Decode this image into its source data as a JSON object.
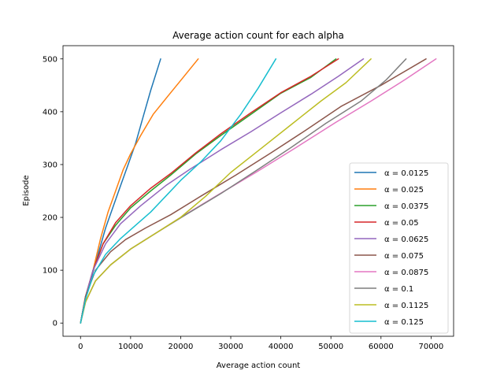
{
  "chart_data": {
    "type": "line",
    "title": "Average action count for each alpha",
    "xlabel": "Average action count",
    "ylabel": "Episode",
    "xlim": [
      -3500,
      74500
    ],
    "ylim": [
      -25,
      525
    ],
    "xticks": [
      0,
      10000,
      20000,
      30000,
      40000,
      50000,
      60000,
      70000
    ],
    "xtick_labels": [
      "0",
      "10000",
      "20000",
      "30000",
      "40000",
      "50000",
      "60000",
      "70000"
    ],
    "yticks": [
      0,
      100,
      200,
      300,
      400,
      500
    ],
    "ytick_labels": [
      "0",
      "100",
      "200",
      "300",
      "400",
      "500"
    ],
    "grid": false,
    "legend_position": "lower-right",
    "series": [
      {
        "name": "α = 0.0125",
        "color": "#1f77b4",
        "points": [
          [
            0,
            0
          ],
          [
            800,
            40
          ],
          [
            2000,
            80
          ],
          [
            3500,
            130
          ],
          [
            5000,
            180
          ],
          [
            6500,
            220
          ],
          [
            8000,
            260
          ],
          [
            9500,
            300
          ],
          [
            11000,
            340
          ],
          [
            12500,
            390
          ],
          [
            14000,
            440
          ],
          [
            16000,
            500
          ]
        ]
      },
      {
        "name": "α = 0.025",
        "color": "#ff7f0e",
        "points": [
          [
            0,
            0
          ],
          [
            1000,
            50
          ],
          [
            2500,
            100
          ],
          [
            4000,
            160
          ],
          [
            5500,
            210
          ],
          [
            7000,
            250
          ],
          [
            8500,
            290
          ],
          [
            10000,
            320
          ],
          [
            12000,
            355
          ],
          [
            14500,
            395
          ],
          [
            17500,
            430
          ],
          [
            20500,
            465
          ],
          [
            23500,
            500
          ]
        ]
      },
      {
        "name": "α = 0.0375",
        "color": "#2ca02c",
        "points": [
          [
            0,
            0
          ],
          [
            1000,
            50
          ],
          [
            2500,
            100
          ],
          [
            4500,
            150
          ],
          [
            7000,
            185
          ],
          [
            10000,
            218
          ],
          [
            14000,
            250
          ],
          [
            18000,
            280
          ],
          [
            23000,
            320
          ],
          [
            28000,
            355
          ],
          [
            34000,
            395
          ],
          [
            40000,
            435
          ],
          [
            46000,
            465
          ],
          [
            51000,
            500
          ]
        ]
      },
      {
        "name": "α = 0.05",
        "color": "#d62728",
        "points": [
          [
            0,
            0
          ],
          [
            1000,
            50
          ],
          [
            2500,
            100
          ],
          [
            4500,
            150
          ],
          [
            7000,
            190
          ],
          [
            10000,
            222
          ],
          [
            14000,
            255
          ],
          [
            18000,
            283
          ],
          [
            23000,
            322
          ],
          [
            28000,
            358
          ],
          [
            34000,
            398
          ],
          [
            40000,
            436
          ],
          [
            46000,
            467
          ],
          [
            51500,
            500
          ]
        ]
      },
      {
        "name": "α = 0.0625",
        "color": "#9467bd",
        "points": [
          [
            0,
            0
          ],
          [
            1000,
            50
          ],
          [
            2500,
            100
          ],
          [
            5000,
            150
          ],
          [
            8000,
            188
          ],
          [
            12000,
            222
          ],
          [
            17000,
            260
          ],
          [
            22000,
            292
          ],
          [
            28000,
            328
          ],
          [
            34000,
            362
          ],
          [
            40000,
            398
          ],
          [
            46000,
            433
          ],
          [
            51500,
            467
          ],
          [
            56500,
            500
          ]
        ]
      },
      {
        "name": "α = 0.075",
        "color": "#8c564b",
        "points": [
          [
            0,
            0
          ],
          [
            1000,
            50
          ],
          [
            3000,
            100
          ],
          [
            6000,
            135
          ],
          [
            9000,
            158
          ],
          [
            13000,
            180
          ],
          [
            18000,
            205
          ],
          [
            24000,
            240
          ],
          [
            31000,
            280
          ],
          [
            38000,
            322
          ],
          [
            45000,
            365
          ],
          [
            52000,
            410
          ],
          [
            60000,
            450
          ],
          [
            69000,
            500
          ]
        ]
      },
      {
        "name": "α = 0.0875",
        "color": "#e377c2",
        "points": [
          [
            0,
            0
          ],
          [
            1000,
            40
          ],
          [
            3000,
            80
          ],
          [
            6000,
            110
          ],
          [
            10000,
            140
          ],
          [
            15000,
            170
          ],
          [
            20000,
            200
          ],
          [
            27000,
            240
          ],
          [
            35000,
            285
          ],
          [
            43000,
            332
          ],
          [
            51000,
            380
          ],
          [
            58000,
            420
          ],
          [
            65000,
            462
          ],
          [
            71000,
            500
          ]
        ]
      },
      {
        "name": "α = 0.1",
        "color": "#7f7f7f",
        "points": [
          [
            0,
            0
          ],
          [
            1000,
            40
          ],
          [
            3000,
            80
          ],
          [
            6000,
            110
          ],
          [
            10000,
            140
          ],
          [
            15000,
            170
          ],
          [
            21000,
            205
          ],
          [
            28000,
            245
          ],
          [
            35000,
            288
          ],
          [
            42000,
            332
          ],
          [
            49000,
            378
          ],
          [
            56000,
            420
          ],
          [
            61000,
            460
          ],
          [
            65000,
            500
          ]
        ]
      },
      {
        "name": "α = 0.1125",
        "color": "#bcbd22",
        "points": [
          [
            0,
            0
          ],
          [
            1000,
            40
          ],
          [
            3000,
            80
          ],
          [
            6000,
            110
          ],
          [
            10000,
            140
          ],
          [
            15000,
            170
          ],
          [
            20000,
            200
          ],
          [
            25000,
            240
          ],
          [
            30000,
            285
          ],
          [
            36000,
            330
          ],
          [
            42000,
            375
          ],
          [
            48000,
            420
          ],
          [
            53000,
            455
          ],
          [
            58000,
            500
          ]
        ]
      },
      {
        "name": "α = 0.125",
        "color": "#17becf",
        "points": [
          [
            0,
            0
          ],
          [
            1000,
            45
          ],
          [
            2500,
            90
          ],
          [
            5000,
            130
          ],
          [
            8000,
            160
          ],
          [
            11000,
            185
          ],
          [
            14000,
            210
          ],
          [
            17000,
            240
          ],
          [
            20000,
            270
          ],
          [
            24000,
            305
          ],
          [
            28000,
            345
          ],
          [
            32000,
            395
          ],
          [
            35500,
            445
          ],
          [
            39000,
            500
          ]
        ]
      }
    ]
  }
}
